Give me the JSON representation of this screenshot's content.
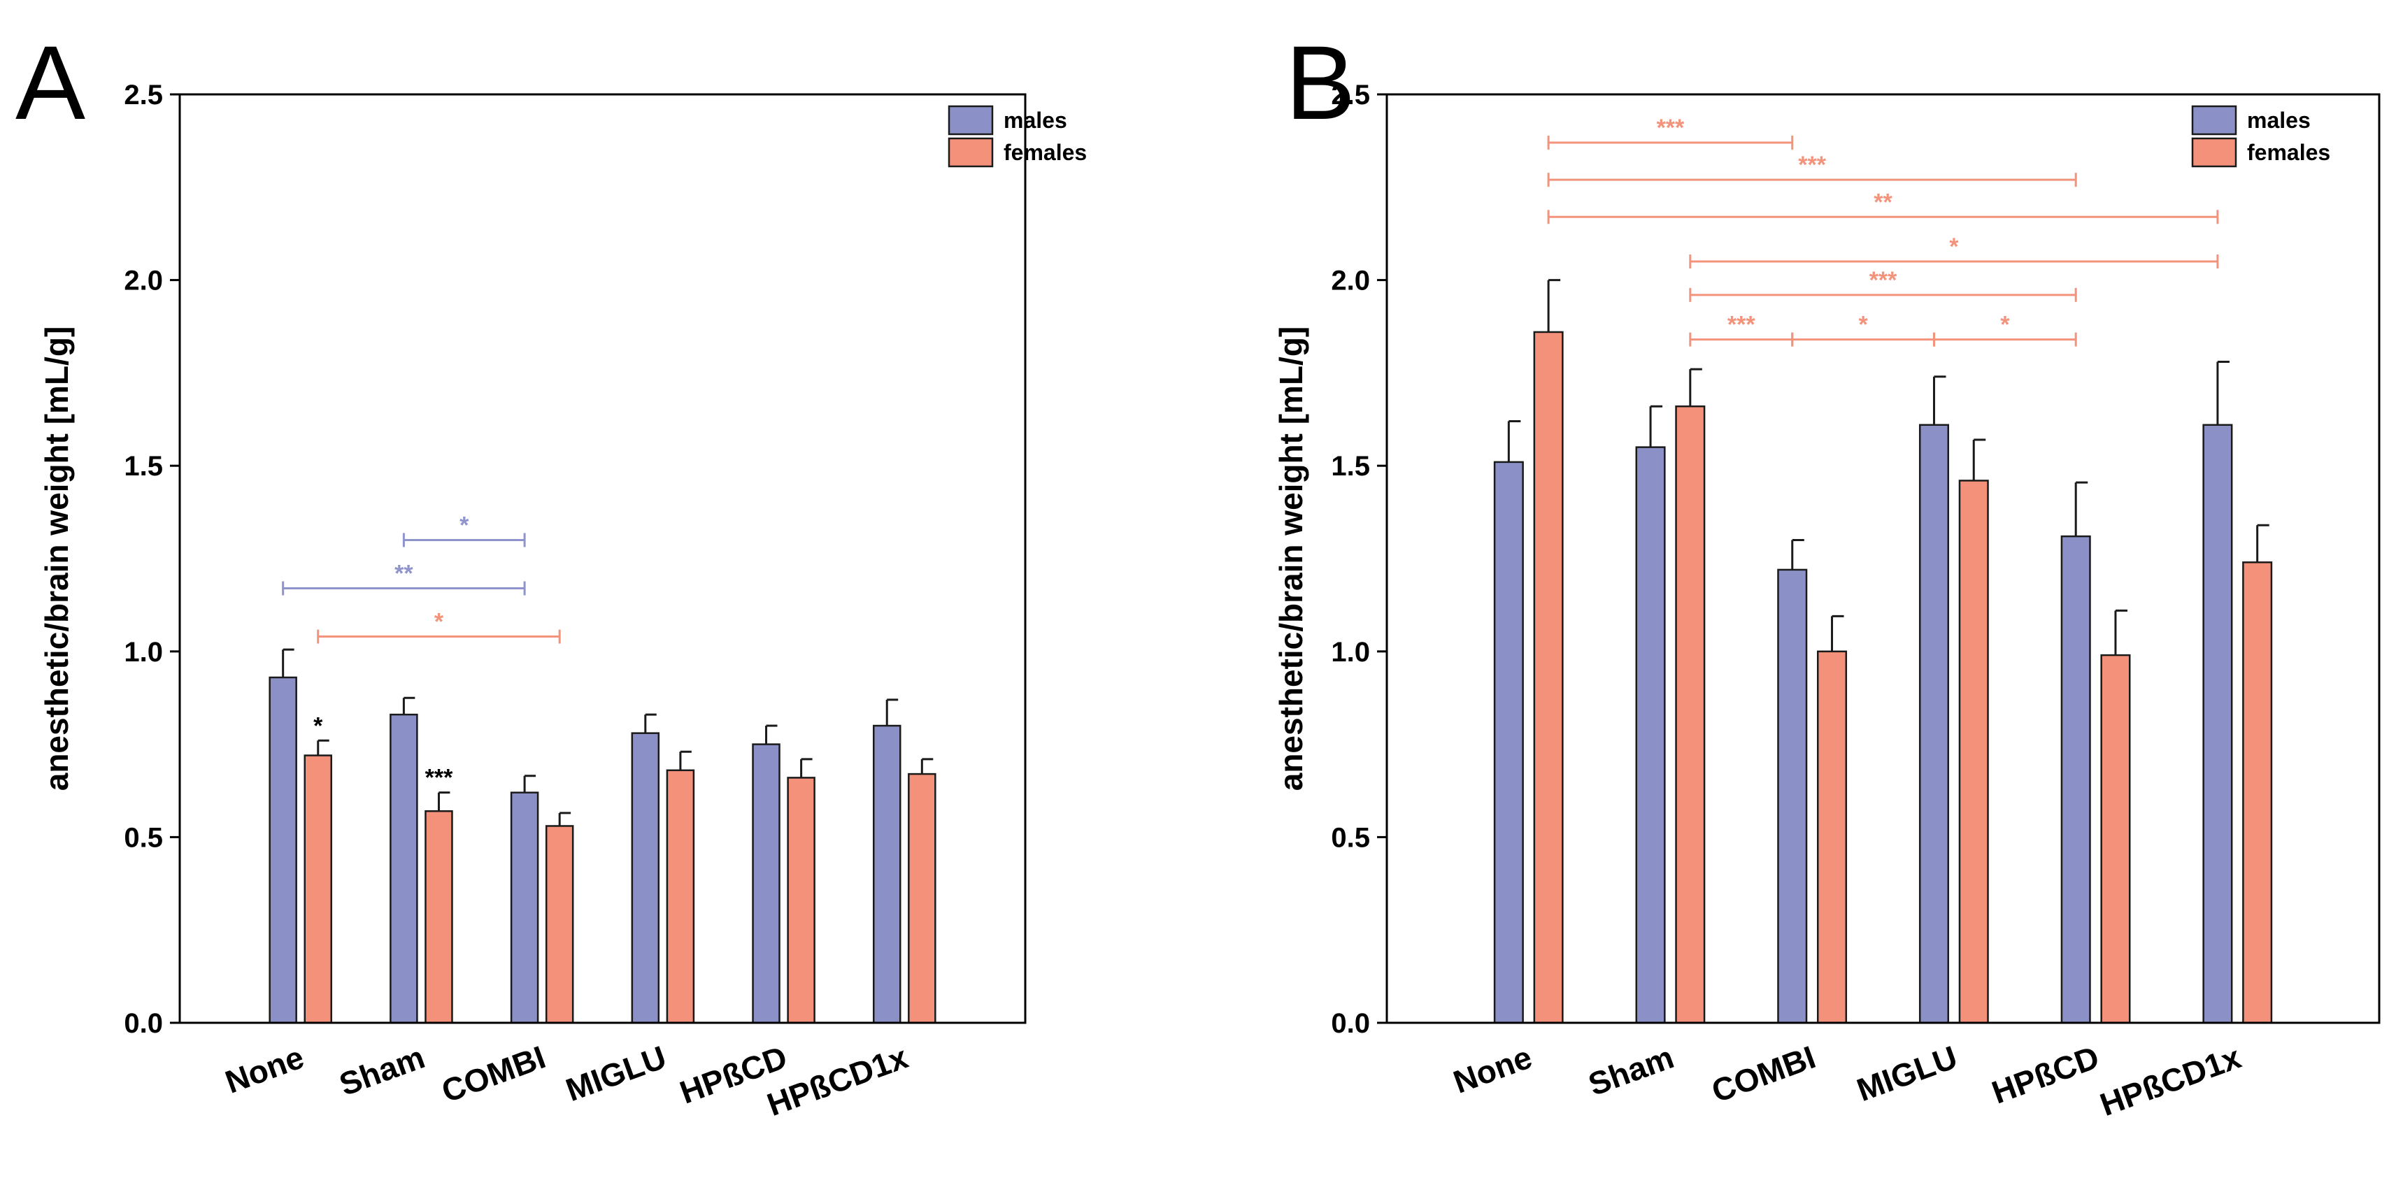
{
  "figure": {
    "colors": {
      "males": "#8b91c6",
      "females": "#f4917a",
      "males_sig": "#8f94cc",
      "females_sig": "#f3937c",
      "axis": "#000000"
    }
  },
  "chart_data": [
    {
      "panel_label": "A",
      "type": "bar",
      "ylabel": "anesthetic/brain weight [mL/g]",
      "ylim": [
        0,
        2.5
      ],
      "yticks": [
        "0.0",
        "0.5",
        "1.0",
        "1.5",
        "2.0",
        "2.5"
      ],
      "categories": [
        "None",
        "Sham",
        "COMBI",
        "MIGLU",
        "HPßCD",
        "HPßCD1x"
      ],
      "legend": [
        "males",
        "females"
      ],
      "legend_position": "top-right",
      "series": [
        {
          "name": "males",
          "values": [
            0.93,
            0.83,
            0.62,
            0.78,
            0.75,
            0.8
          ],
          "errors": [
            0.075,
            0.045,
            0.045,
            0.05,
            0.05,
            0.07
          ]
        },
        {
          "name": "females",
          "values": [
            0.72,
            0.57,
            0.53,
            0.68,
            0.66,
            0.67
          ],
          "errors": [
            0.04,
            0.05,
            0.035,
            0.05,
            0.05,
            0.04
          ]
        }
      ],
      "bar_annotations": [
        {
          "series": "females",
          "category": "None",
          "text": "*"
        },
        {
          "series": "females",
          "category": "Sham",
          "text": "***"
        }
      ],
      "significance": [
        {
          "from": [
            "males",
            "Sham"
          ],
          "to": [
            "males",
            "COMBI"
          ],
          "y": 1.3,
          "text": "*",
          "color": "males"
        },
        {
          "from": [
            "males",
            "None"
          ],
          "to": [
            "males",
            "COMBI"
          ],
          "y": 1.17,
          "text": "**",
          "color": "males"
        },
        {
          "from": [
            "females",
            "None"
          ],
          "to": [
            "females",
            "COMBI"
          ],
          "y": 1.04,
          "text": "*",
          "color": "females"
        }
      ]
    },
    {
      "panel_label": "B",
      "type": "bar",
      "ylabel": "anesthetic/brain weight [mL/g]",
      "ylim": [
        0,
        2.5
      ],
      "yticks": [
        "0.0",
        "0.5",
        "1.0",
        "1.5",
        "2.0",
        "2.5"
      ],
      "categories": [
        "None",
        "Sham",
        "COMBI",
        "MIGLU",
        "HPßCD",
        "HPßCD1x"
      ],
      "legend": [
        "males",
        "females"
      ],
      "legend_position": "top-right",
      "series": [
        {
          "name": "males",
          "values": [
            1.51,
            1.55,
            1.22,
            1.61,
            1.31,
            1.61
          ],
          "errors": [
            0.11,
            0.11,
            0.08,
            0.13,
            0.145,
            0.17
          ]
        },
        {
          "name": "females",
          "values": [
            1.86,
            1.66,
            1.0,
            1.46,
            0.99,
            1.24
          ],
          "errors": [
            0.14,
            0.1,
            0.095,
            0.11,
            0.12,
            0.1
          ]
        }
      ],
      "bar_annotations": [],
      "significance": [
        {
          "from": [
            "females",
            "None"
          ],
          "to": [
            "males",
            "COMBI"
          ],
          "y": 2.37,
          "text": "***",
          "color": "females"
        },
        {
          "from": [
            "females",
            "None"
          ],
          "to": [
            "males",
            "HPßCD"
          ],
          "y": 2.27,
          "text": "***",
          "color": "females"
        },
        {
          "from": [
            "females",
            "None"
          ],
          "to": [
            "males",
            "HPßCD1x"
          ],
          "y": 2.17,
          "text": "**",
          "color": "females"
        },
        {
          "from": [
            "females",
            "Sham"
          ],
          "to": [
            "males",
            "HPßCD1x"
          ],
          "y": 2.05,
          "text": "*",
          "color": "females"
        },
        {
          "from": [
            "females",
            "Sham"
          ],
          "to": [
            "males",
            "HPßCD"
          ],
          "y": 1.96,
          "text": "***",
          "color": "females"
        },
        {
          "from": [
            "females",
            "Sham"
          ],
          "to": [
            "males",
            "COMBI"
          ],
          "y": 1.84,
          "text": "***",
          "color": "females"
        },
        {
          "from": [
            "males",
            "COMBI"
          ],
          "to": [
            "males",
            "MIGLU"
          ],
          "y": 1.84,
          "text": "*",
          "color": "females"
        },
        {
          "from": [
            "males",
            "MIGLU"
          ],
          "to": [
            "males",
            "HPßCD"
          ],
          "y": 1.84,
          "text": "*",
          "color": "females"
        }
      ]
    }
  ]
}
